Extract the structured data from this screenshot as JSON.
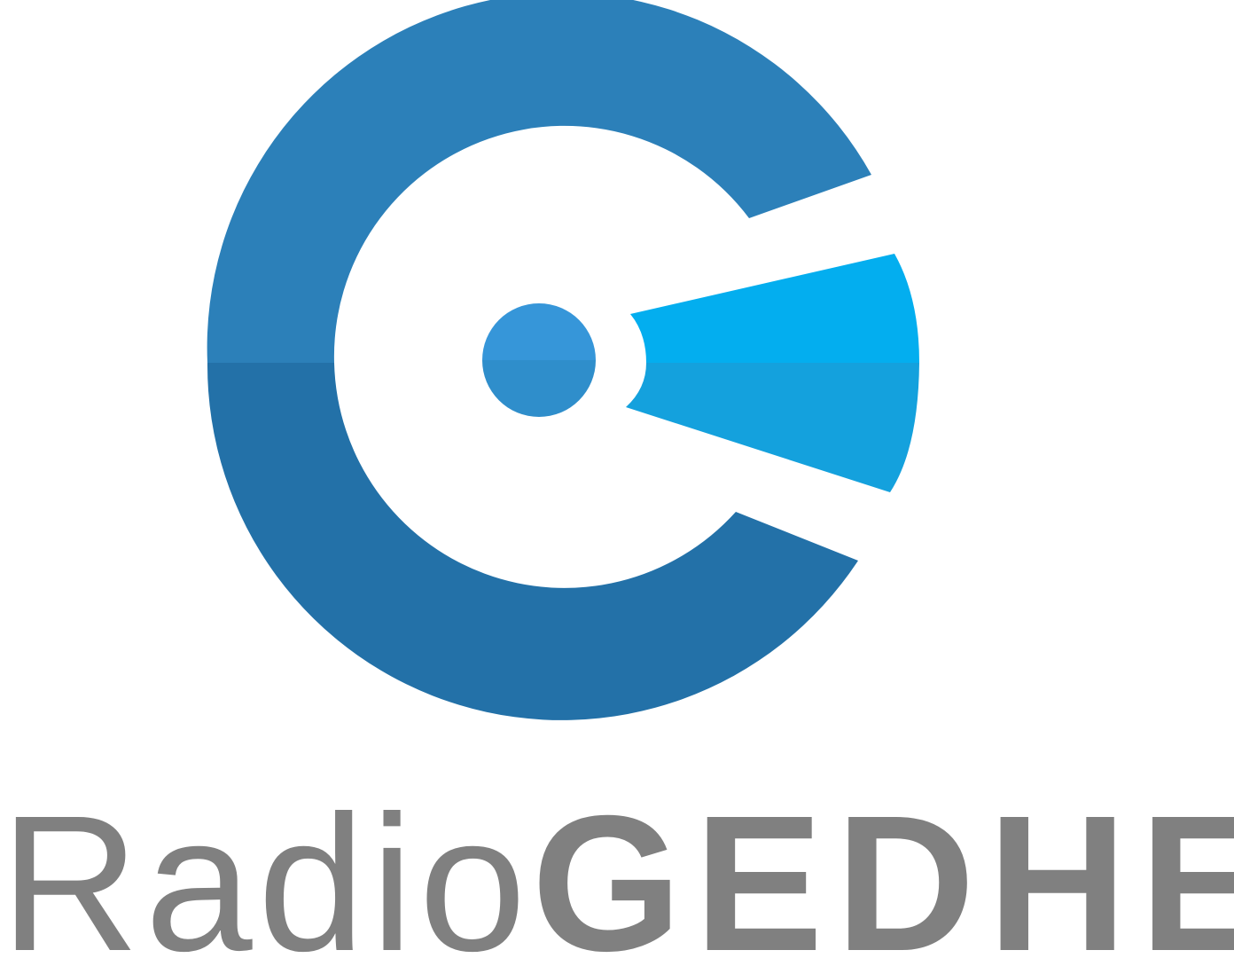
{
  "logo": {
    "name_regular": "Radio",
    "name_bold": "GEDHE",
    "colors": {
      "ring_top": "#2c80b9",
      "ring_bottom": "#2371a8",
      "dot_top": "#3696d9",
      "dot_bottom": "#2f8ecb",
      "beam_top": "#03aeef",
      "beam_bottom": "#14a1dd",
      "text": "#808080"
    }
  }
}
